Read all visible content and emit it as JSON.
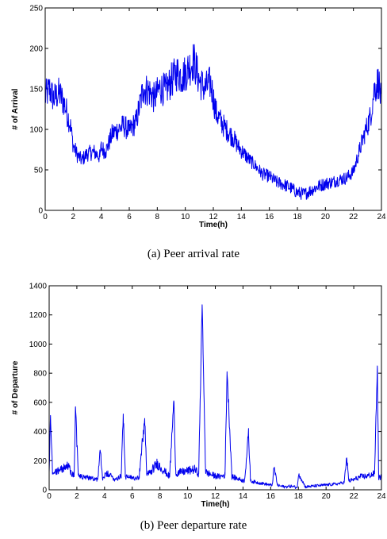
{
  "chart_data": [
    {
      "type": "line",
      "xlabel": "Time(h)",
      "ylabel": "# of Arrival",
      "caption": "(a) Peer arrival rate",
      "xlim": [
        0,
        24
      ],
      "ylim": [
        0,
        250
      ],
      "xticks": [
        "0",
        "2",
        "4",
        "6",
        "8",
        "10",
        "12",
        "14",
        "16",
        "18",
        "20",
        "22",
        "24"
      ],
      "yticks": [
        "0",
        "50",
        "100",
        "150",
        "200",
        "250"
      ],
      "grid": false,
      "color": "#0000ee",
      "series": [
        {
          "x": [
            0,
            0.3,
            0.6,
            1.0,
            1.4,
            1.8,
            2.0,
            2.3,
            2.6,
            3.0,
            3.5,
            3.9,
            4.0,
            4.3,
            4.8,
            5.2,
            5.6,
            6.0,
            6.5,
            7.0,
            7.4,
            7.8,
            8.2,
            8.6,
            9.0,
            9.4,
            9.8,
            10.2,
            10.6,
            11.0,
            11.4,
            11.8,
            12.2,
            12.6,
            13.0,
            13.4,
            13.8,
            14.2,
            14.6,
            15.0,
            15.5,
            16.0,
            16.5,
            17.0,
            17.5,
            18.0,
            18.5,
            19.0,
            19.5,
            20.0,
            20.5,
            21.0,
            21.5,
            22.0,
            22.4,
            22.8,
            23.2,
            23.5,
            23.8,
            24.0
          ],
          "y": [
            140,
            150,
            138,
            145,
            130,
            105,
            80,
            68,
            62,
            70,
            72,
            66,
            78,
            72,
            95,
            100,
            105,
            98,
            110,
            150,
            148,
            138,
            152,
            148,
            160,
            170,
            165,
            175,
            185,
            160,
            150,
            158,
            120,
            108,
            98,
            90,
            78,
            70,
            62,
            55,
            45,
            42,
            35,
            32,
            28,
            22,
            20,
            25,
            30,
            33,
            35,
            38,
            40,
            48,
            72,
            95,
            115,
            150,
            160,
            130
          ]
        }
      ]
    },
    {
      "type": "line",
      "xlabel": "Time(h)",
      "ylabel": "# of Departure",
      "caption": "(b) Peer departure rate",
      "xlim": [
        0,
        24
      ],
      "ylim": [
        0,
        1400
      ],
      "xticks": [
        "0",
        "2",
        "4",
        "6",
        "8",
        "10",
        "12",
        "14",
        "16",
        "18",
        "20",
        "22",
        "24"
      ],
      "yticks": [
        "0",
        "200",
        "400",
        "600",
        "800",
        "1000",
        "1200",
        "1400"
      ],
      "grid": false,
      "color": "#0000ee",
      "series": [
        {
          "x": [
            0,
            0.1,
            0.25,
            0.6,
            1.0,
            1.4,
            1.8,
            1.9,
            2.1,
            2.6,
            3.0,
            3.5,
            3.7,
            3.85,
            4.2,
            4.8,
            5.2,
            5.35,
            5.5,
            6.0,
            6.5,
            6.9,
            7.05,
            7.3,
            7.8,
            8.3,
            8.7,
            9.0,
            9.15,
            9.5,
            10.0,
            10.5,
            10.8,
            11.05,
            11.3,
            11.8,
            12.3,
            12.7,
            12.85,
            13.2,
            13.8,
            14.1,
            14.4,
            14.55,
            15.0,
            15.6,
            16.1,
            16.25,
            16.5,
            17.0,
            17.5,
            17.9,
            18.05,
            18.5,
            19.0,
            19.6,
            20.2,
            20.8,
            21.3,
            21.5,
            21.65,
            22.0,
            22.5,
            23.0,
            23.5,
            23.7,
            23.8,
            24.0
          ],
          "y": [
            120,
            510,
            110,
            130,
            150,
            160,
            90,
            570,
            100,
            80,
            85,
            70,
            260,
            80,
            110,
            70,
            100,
            520,
            90,
            80,
            90,
            490,
            100,
            120,
            180,
            130,
            90,
            610,
            110,
            120,
            130,
            140,
            110,
            1270,
            120,
            100,
            90,
            100,
            810,
            90,
            70,
            60,
            380,
            60,
            50,
            40,
            30,
            150,
            30,
            20,
            25,
            15,
            110,
            20,
            25,
            30,
            35,
            40,
            50,
            210,
            60,
            70,
            90,
            95,
            110,
            850,
            80,
            90
          ]
        }
      ]
    }
  ]
}
